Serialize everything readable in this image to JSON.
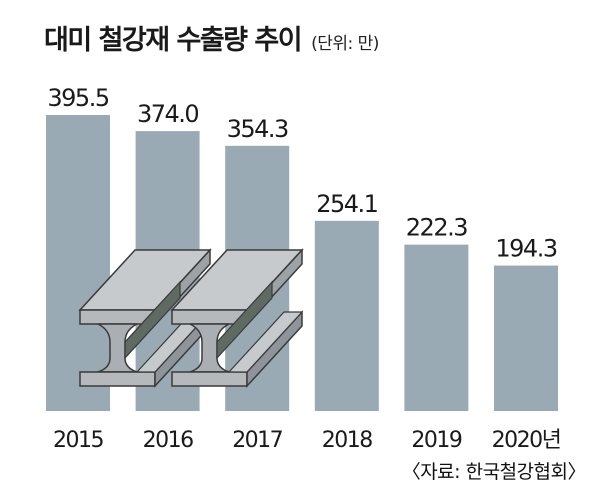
{
  "title": "대미 철강재 수출량 추이",
  "unit": "(단위: 만)",
  "source": "〈자료: 한국철강협회〉",
  "colors": {
    "bar": "#9aaab4",
    "text": "#1a1a1a",
    "beam": "#c7cacc",
    "beam_dark": "#7b8287",
    "beam_shadow": "#5f6a63"
  },
  "chart_data": {
    "type": "bar",
    "categories": [
      "2015",
      "2016",
      "2017",
      "2018",
      "2019",
      "2020년"
    ],
    "values": [
      395.5,
      374.0,
      354.3,
      254.1,
      222.3,
      194.3
    ],
    "value_labels": [
      "395.5",
      "374.0",
      "354.3",
      "254.1",
      "222.3",
      "194.3"
    ],
    "title": "대미 철강재 수출량 추이",
    "ylim": [
      0,
      395.5
    ],
    "grid": false,
    "decoration": "steel-i-beam-illustration"
  }
}
